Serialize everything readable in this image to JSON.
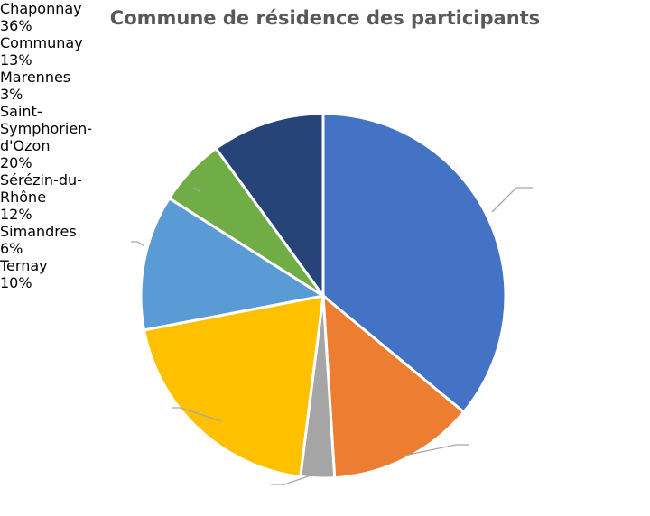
{
  "chart_data": {
    "type": "pie",
    "title": "Commune de résidence des participants",
    "categories": [
      "Chaponnay",
      "Communay",
      "Marennes",
      "Saint-Symphorien-d'Ozon",
      "Sérézin-du-Rhône",
      "Simandres",
      "Ternay"
    ],
    "values": [
      36,
      13,
      3,
      20,
      12,
      6,
      10
    ],
    "value_labels": [
      "36%",
      "13%",
      "3%",
      "20%",
      "12%",
      "6%",
      "10%"
    ],
    "colors": [
      "#4472c4",
      "#ed7d31",
      "#a5a5a5",
      "#ffc000",
      "#5b9bd5",
      "#70ad47",
      "#264478"
    ]
  }
}
